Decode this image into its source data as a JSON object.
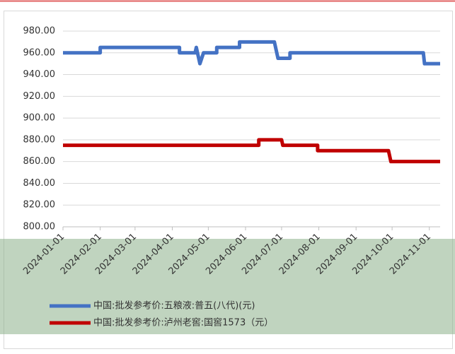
{
  "chart_data": {
    "type": "line",
    "series": [
      {
        "name": "中国:批发参考价:五粮液:普五(八代)(元)",
        "color": "#4472c4",
        "x": [
          "2024-01-01",
          "2024-02-01",
          "2024-02-01",
          "2024-04-07",
          "2024-04-07",
          "2024-04-20",
          "2024-04-21",
          "2024-04-22",
          "2024-04-23",
          "2024-04-24",
          "2024-04-27",
          "2024-05-08",
          "2024-05-08",
          "2024-05-27",
          "2024-05-27",
          "2024-06-25",
          "2024-06-28",
          "2024-07-08",
          "2024-07-08",
          "2024-10-27",
          "2024-10-28",
          "2024-11-10"
        ],
        "values": [
          960,
          960,
          965,
          965,
          960,
          960,
          965,
          960,
          955,
          950,
          960,
          960,
          965,
          965,
          970,
          970,
          955,
          955,
          960,
          960,
          950,
          950
        ]
      },
      {
        "name": "中国:批发参考价:泸州老窖:国窖1573（元）",
        "color": "#c00000",
        "x": [
          "2024-01-01",
          "2024-06-12",
          "2024-06-12",
          "2024-07-01",
          "2024-07-02",
          "2024-07-31",
          "2024-07-31",
          "2024-09-28",
          "2024-09-30",
          "2024-11-10"
        ],
        "values": [
          875,
          875,
          880,
          880,
          875,
          875,
          870,
          870,
          860,
          860
        ]
      }
    ],
    "xlim": [
      "2024-01-01",
      "2024-11-10"
    ],
    "xticks": [
      "2024-01-01",
      "2024-02-01",
      "2024-03-01",
      "2024-04-01",
      "2024-05-01",
      "2024-06-01",
      "2024-07-01",
      "2024-08-01",
      "2024-09-01",
      "2024-10-01",
      "2024-11-01"
    ],
    "ylim": [
      800,
      980
    ],
    "yticks": [
      {
        "value": 800,
        "label": "800.00"
      },
      {
        "value": 820,
        "label": "820.00"
      },
      {
        "value": 840,
        "label": "840.00"
      },
      {
        "value": 860,
        "label": "860.00"
      },
      {
        "value": 880,
        "label": "880.00"
      },
      {
        "value": 900,
        "label": "900.00"
      },
      {
        "value": 920,
        "label": "920.00"
      },
      {
        "value": 940,
        "label": "940.00"
      },
      {
        "value": 960,
        "label": "960.00"
      },
      {
        "value": 980,
        "label": "980.00"
      }
    ],
    "grid": true,
    "legend": "bottom"
  }
}
